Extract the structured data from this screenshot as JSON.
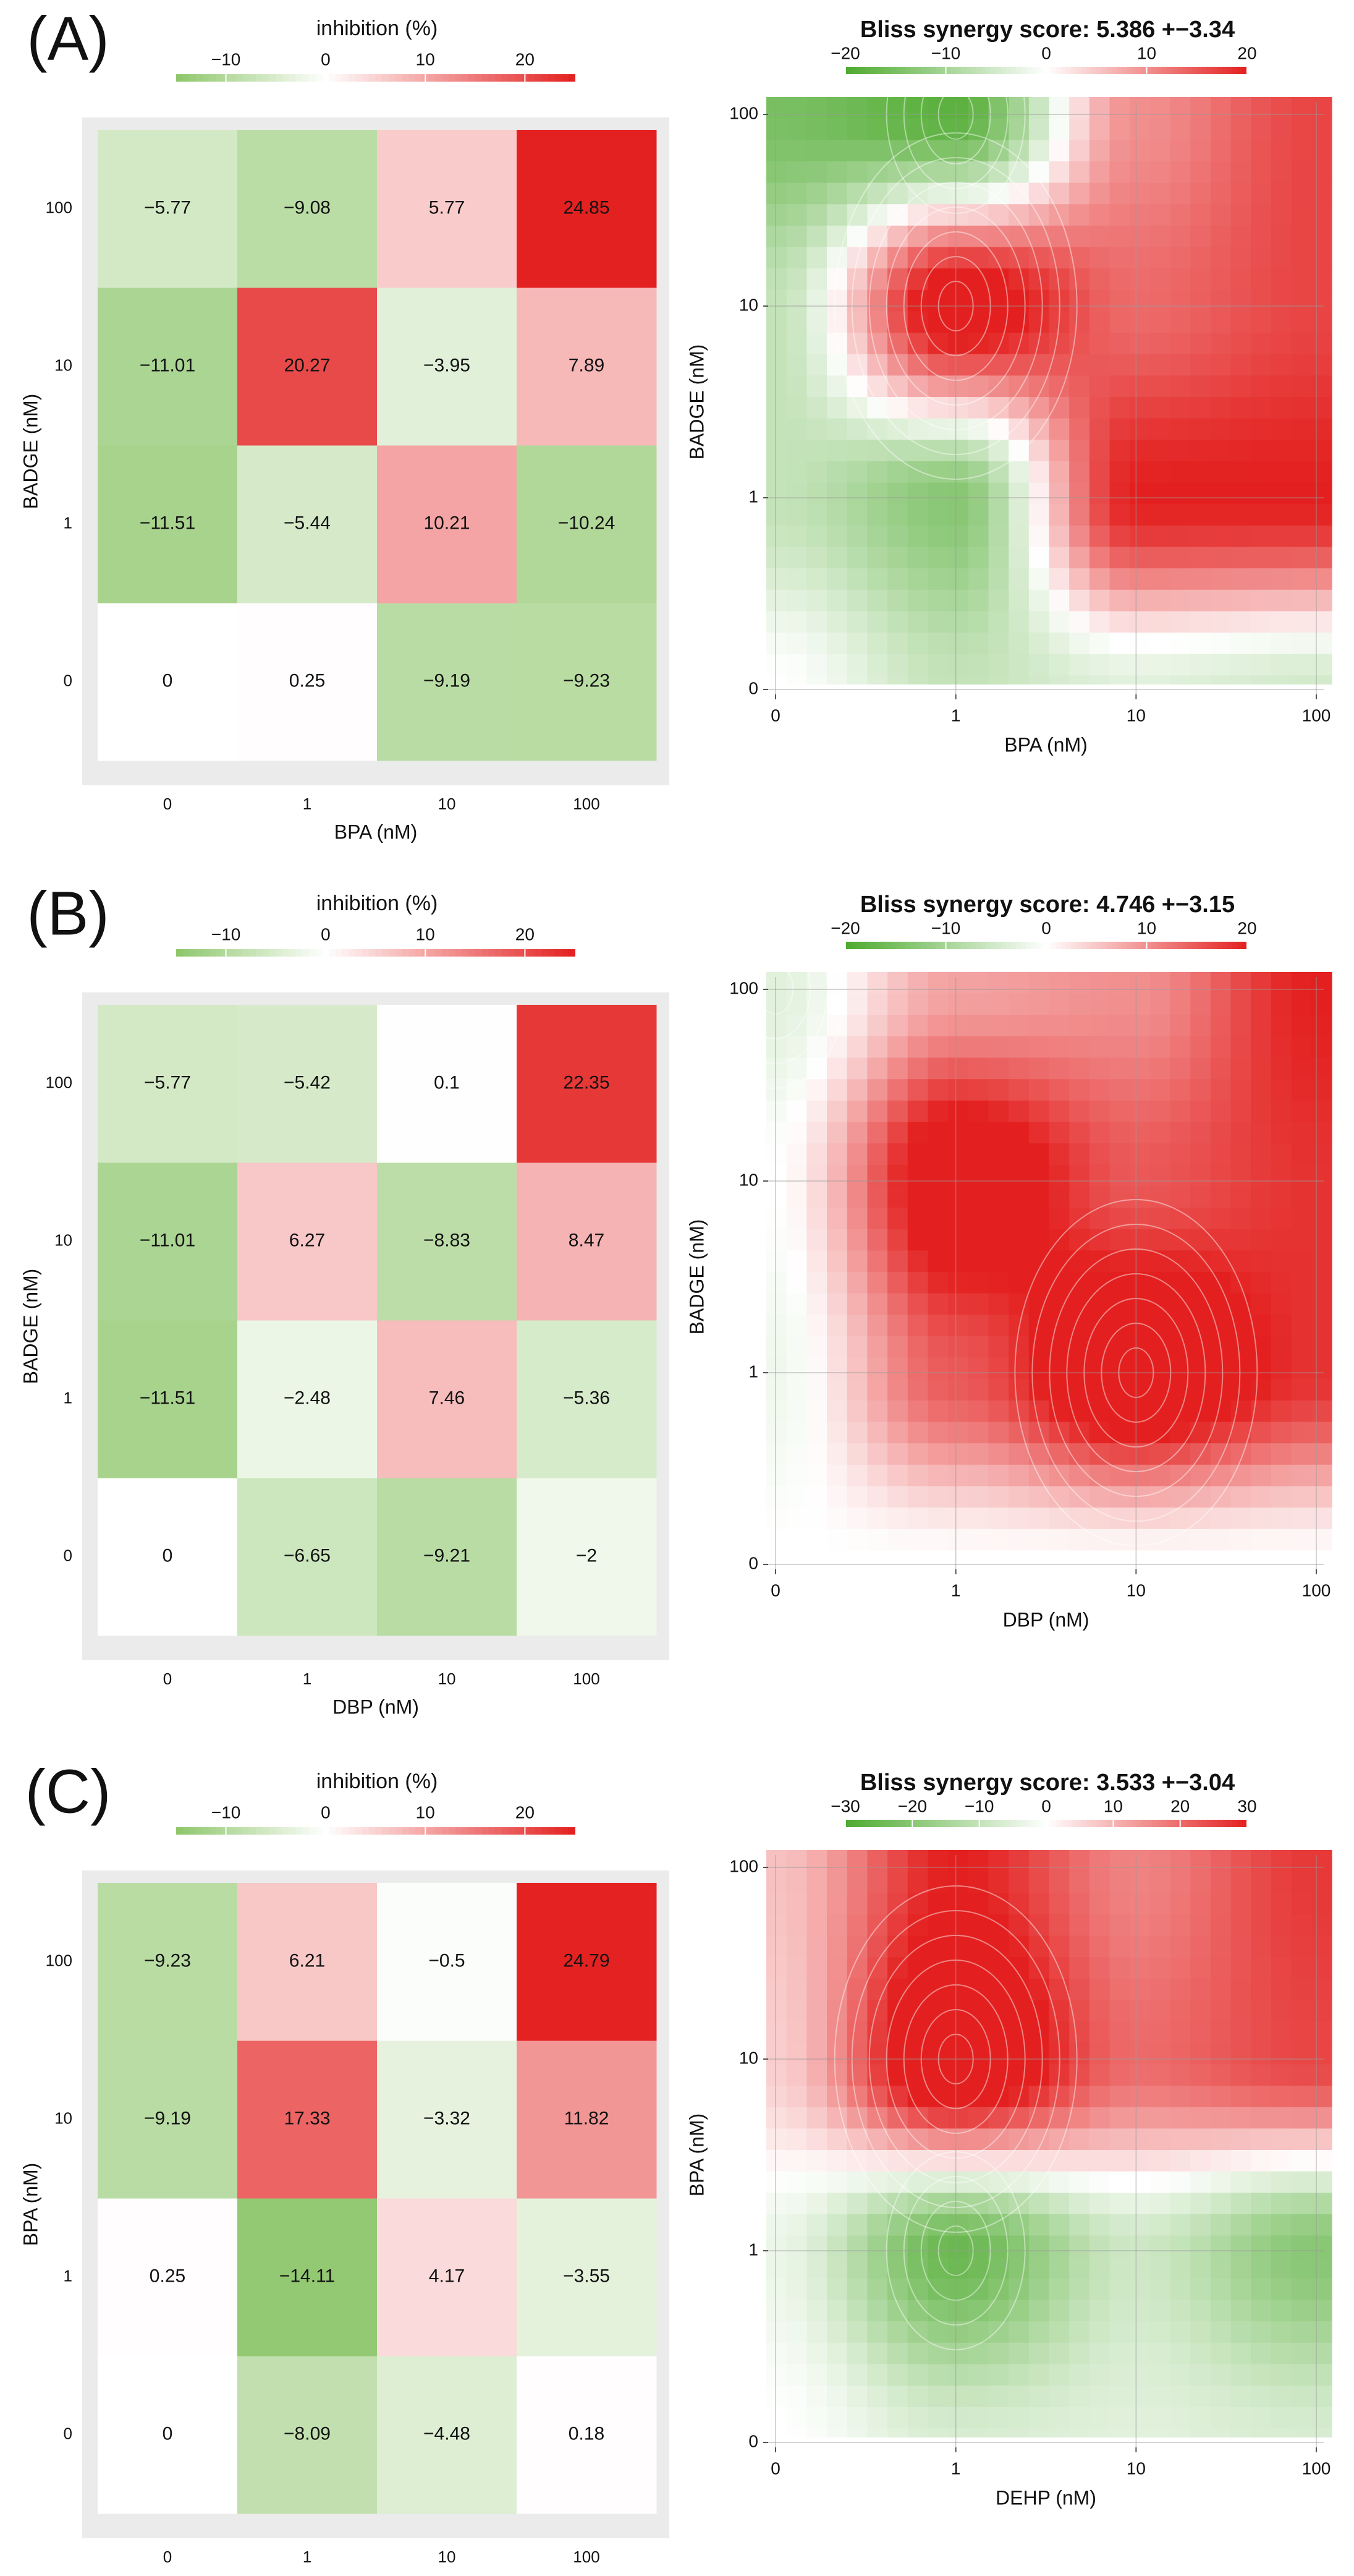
{
  "chart_data": [
    {
      "panel": "(A)",
      "type": "heatmap",
      "title": "inhibition (%)",
      "xlabel": "BPA (nM)",
      "ylabel": "BADGE (nM)",
      "x_ticks": [
        "0",
        "1",
        "10",
        "100"
      ],
      "y_ticks": [
        "0",
        "1",
        "10",
        "100"
      ],
      "legend_ticks": [
        "−10",
        "0",
        "10",
        "20"
      ],
      "legend_values": [
        -10,
        0,
        10,
        20
      ],
      "legend_range": [
        -15,
        25
      ],
      "cell_labels": [
        [
          "0",
          "0.25",
          "−9.19",
          "−9.23"
        ],
        [
          "−11.51",
          "−5.44",
          "10.21",
          "−10.24"
        ],
        [
          "−11.01",
          "20.27",
          "−3.95",
          "7.89"
        ],
        [
          "−5.77",
          "−9.08",
          "5.77",
          "24.85"
        ]
      ],
      "values": [
        [
          0,
          0.25,
          -9.19,
          -9.23
        ],
        [
          -11.51,
          -5.44,
          10.21,
          -10.24
        ],
        [
          -11.01,
          20.27,
          -3.95,
          7.89
        ],
        [
          -5.77,
          -9.08,
          5.77,
          24.85
        ]
      ],
      "color_low": "#8dc66a",
      "color_mid": "#ffffff",
      "color_high": "#e3201f"
    },
    {
      "panel": "(A)",
      "type": "heatmap",
      "title": "Bliss synergy score: 5.386 +−3.34",
      "xlabel": "BPA (nM)",
      "ylabel": "BADGE (nM)",
      "x_ticks": [
        "0",
        "1",
        "10",
        "100"
      ],
      "y_ticks": [
        "0",
        "1",
        "10",
        "100"
      ],
      "legend_ticks": [
        "−20",
        "−10",
        "0",
        "10",
        "20"
      ],
      "legend_values": [
        -20,
        -10,
        0,
        10,
        20
      ],
      "legend_range": [
        -20,
        20
      ],
      "synergy": [
        [
          0,
          -4,
          -2,
          -3
        ],
        [
          -4,
          -8,
          12,
          12
        ],
        [
          -4,
          14,
          8,
          10
        ],
        [
          -9,
          -11,
          6,
          10
        ]
      ],
      "color_low": "#4daa2e",
      "color_mid": "#ffffff",
      "color_high": "#e3201f"
    },
    {
      "panel": "(B)",
      "type": "heatmap",
      "title": "inhibition (%)",
      "xlabel": "DBP (nM)",
      "ylabel": "BADGE (nM)",
      "x_ticks": [
        "0",
        "1",
        "10",
        "100"
      ],
      "y_ticks": [
        "0",
        "1",
        "10",
        "100"
      ],
      "legend_ticks": [
        "−10",
        "0",
        "10",
        "20"
      ],
      "legend_values": [
        -10,
        0,
        10,
        20
      ],
      "legend_range": [
        -15,
        25
      ],
      "cell_labels": [
        [
          "0",
          "−6.65",
          "−9.21",
          "−2"
        ],
        [
          "−11.51",
          "−2.48",
          "7.46",
          "−5.36"
        ],
        [
          "−11.01",
          "6.27",
          "−8.83",
          "8.47"
        ],
        [
          "−5.77",
          "−5.42",
          "0.1",
          "22.35"
        ]
      ],
      "values": [
        [
          0,
          -6.65,
          -9.21,
          -2
        ],
        [
          -11.51,
          -2.48,
          7.46,
          -5.36
        ],
        [
          -11.01,
          6.27,
          -8.83,
          8.47
        ],
        [
          -5.77,
          -5.42,
          0.1,
          22.35
        ]
      ],
      "color_low": "#8dc66a",
      "color_mid": "#ffffff",
      "color_high": "#e3201f"
    },
    {
      "panel": "(B)",
      "type": "heatmap",
      "title": "Bliss synergy score: 4.746 +−3.15",
      "xlabel": "DBP (nM)",
      "ylabel": "BADGE (nM)",
      "x_ticks": [
        "0",
        "1",
        "10",
        "100"
      ],
      "y_ticks": [
        "0",
        "1",
        "10",
        "100"
      ],
      "legend_ticks": [
        "−20",
        "−10",
        "0",
        "10",
        "20"
      ],
      "legend_values": [
        -20,
        -10,
        0,
        10,
        20
      ],
      "legend_range": [
        -20,
        20
      ],
      "synergy": [
        [
          0,
          0,
          0,
          0
        ],
        [
          -1,
          9,
          16,
          11
        ],
        [
          0,
          15,
          9,
          11
        ],
        [
          -2,
          5,
          6,
          12
        ]
      ],
      "color_low": "#4daa2e",
      "color_mid": "#ffffff",
      "color_high": "#e3201f"
    },
    {
      "panel": "(C)",
      "type": "heatmap",
      "title": "inhibition (%)",
      "xlabel": "DEHP (nM)",
      "ylabel": "BPA (nM)",
      "x_ticks": [
        "0",
        "1",
        "10",
        "100"
      ],
      "y_ticks": [
        "0",
        "1",
        "10",
        "100"
      ],
      "legend_ticks": [
        "−10",
        "0",
        "10",
        "20"
      ],
      "legend_values": [
        -10,
        0,
        10,
        20
      ],
      "legend_range": [
        -15,
        25
      ],
      "cell_labels": [
        [
          "0",
          "−8.09",
          "−4.48",
          "0.18"
        ],
        [
          "0.25",
          "−14.11",
          "4.17",
          "−3.55"
        ],
        [
          "−9.19",
          "17.33",
          "−3.32",
          "11.82"
        ],
        [
          "−9.23",
          "6.21",
          "−0.5",
          "24.79"
        ]
      ],
      "values": [
        [
          0,
          -8.09,
          -4.48,
          0.18
        ],
        [
          0.25,
          -14.11,
          4.17,
          -3.55
        ],
        [
          -9.19,
          17.33,
          -3.32,
          11.82
        ],
        [
          -9.23,
          6.21,
          -0.5,
          24.79
        ]
      ],
      "color_low": "#8dc66a",
      "color_mid": "#ffffff",
      "color_high": "#e3201f"
    },
    {
      "panel": "(C)",
      "type": "heatmap",
      "title": "Bliss synergy score: 3.533 +−3.04",
      "xlabel": "DEHP (nM)",
      "ylabel": "BPA (nM)",
      "x_ticks": [
        "0",
        "1",
        "10",
        "100"
      ],
      "y_ticks": [
        "0",
        "1",
        "10",
        "100"
      ],
      "legend_ticks": [
        "−30",
        "−20",
        "−10",
        "0",
        "10",
        "20",
        "30"
      ],
      "legend_values": [
        -30,
        -20,
        -10,
        0,
        10,
        20,
        30
      ],
      "legend_range": [
        -30,
        30
      ],
      "synergy": [
        [
          0,
          -4,
          -3,
          -4
        ],
        [
          -2,
          -15,
          -5,
          -12
        ],
        [
          4,
          24,
          12,
          15
        ],
        [
          5,
          18,
          10,
          16
        ]
      ],
      "color_low": "#4daa2e",
      "color_mid": "#ffffff",
      "color_high": "#e3201f"
    }
  ]
}
